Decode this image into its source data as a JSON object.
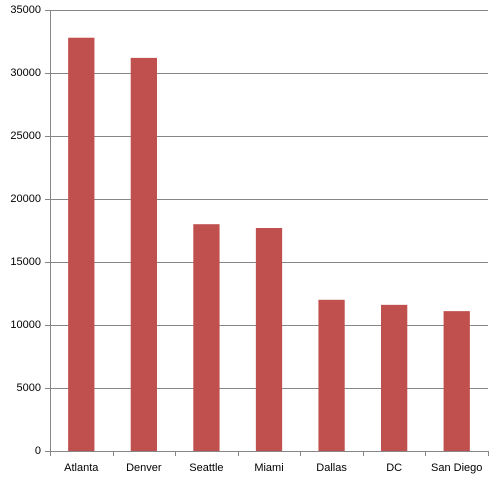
{
  "chart_data": {
    "type": "bar",
    "categories": [
      "Atlanta",
      "Denver",
      "Seattle",
      "Miami",
      "Dallas",
      "DC",
      "San Diego"
    ],
    "values": [
      32800,
      31200,
      18000,
      17700,
      12000,
      11600,
      11100
    ],
    "color": "#c0504d",
    "ylim": [
      0,
      35000
    ],
    "yticks": [
      0,
      5000,
      10000,
      15000,
      20000,
      25000,
      30000,
      35000
    ],
    "grid": true
  }
}
